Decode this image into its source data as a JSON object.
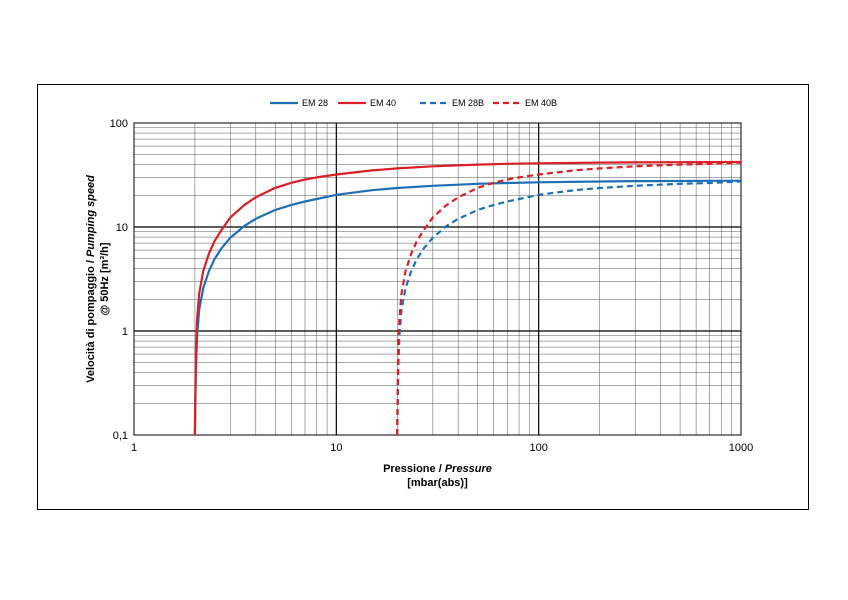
{
  "chart_data": {
    "type": "line",
    "x_scale": "log",
    "y_scale": "log",
    "xlim": [
      1,
      1000
    ],
    "ylim": [
      0.1,
      100
    ],
    "x_ticks": [
      "1",
      "10",
      "100",
      "1000"
    ],
    "y_ticks": [
      "0,1",
      "1",
      "10",
      "100"
    ],
    "xlabel_line1_prefix": "Pressione / ",
    "xlabel_line1_italic": "Pressure",
    "xlabel_line2": "[mbar(abs)]",
    "ylabel_line1_prefix": "Velocità di pompaggio / ",
    "ylabel_line1_italic": "Pumping speed",
    "ylabel_line2": "@ 50Hz [m³/h]",
    "legend_position": "top-center",
    "grid": true,
    "series": [
      {
        "name": "EM 28",
        "color": "#1f6fb4",
        "dash": false,
        "x": [
          2.0,
          2.02,
          2.05,
          2.1,
          2.2,
          2.35,
          2.5,
          2.7,
          3.0,
          3.5,
          4,
          5,
          6,
          7,
          8,
          10,
          15,
          20,
          30,
          50,
          70,
          100,
          200,
          300,
          500,
          700,
          1000
        ],
        "y": [
          0.1,
          0.4,
          0.9,
          1.6,
          2.6,
          3.8,
          4.9,
          6.2,
          7.9,
          10.2,
          12.0,
          14.6,
          16.3,
          17.6,
          18.6,
          20.4,
          22.6,
          23.7,
          24.9,
          26.0,
          26.5,
          26.9,
          27.4,
          27.6,
          27.7,
          27.8,
          27.9
        ]
      },
      {
        "name": "EM 40",
        "color": "#d92027",
        "dash": false,
        "x": [
          2.0,
          2.02,
          2.05,
          2.1,
          2.2,
          2.35,
          2.5,
          2.7,
          3.0,
          3.5,
          4,
          5,
          6,
          7,
          8,
          10,
          15,
          20,
          30,
          50,
          70,
          100,
          200,
          300,
          500,
          700,
          1000
        ],
        "y": [
          0.1,
          0.6,
          1.3,
          2.3,
          3.8,
          5.6,
          7.3,
          9.3,
          12.4,
          16.2,
          19.3,
          23.8,
          26.6,
          28.6,
          30.0,
          32.0,
          35.0,
          36.6,
          38.3,
          39.8,
          40.5,
          41.0,
          41.6,
          41.8,
          42.0,
          42.1,
          42.2
        ]
      },
      {
        "name": "EM 28B",
        "color": "#1f6fb4",
        "dash": true,
        "x": [
          20.0,
          20.2,
          20.5,
          21,
          22,
          23.5,
          25,
          27,
          30,
          35,
          40,
          50,
          60,
          70,
          80,
          100,
          150,
          200,
          300,
          500,
          700,
          1000
        ],
        "y": [
          0.1,
          0.4,
          0.9,
          1.6,
          2.6,
          3.8,
          4.9,
          6.2,
          7.9,
          10.2,
          12.0,
          14.6,
          16.3,
          17.6,
          18.6,
          20.4,
          22.6,
          23.7,
          24.9,
          26.0,
          26.5,
          27.4
        ]
      },
      {
        "name": "EM 40B",
        "color": "#d92027",
        "dash": true,
        "x": [
          20.0,
          20.2,
          20.5,
          21,
          22,
          23.5,
          25,
          27,
          30,
          35,
          40,
          50,
          60,
          70,
          80,
          100,
          150,
          200,
          300,
          500,
          700,
          1000
        ],
        "y": [
          0.1,
          0.6,
          1.3,
          2.3,
          3.8,
          5.6,
          7.3,
          9.3,
          12.4,
          16.2,
          19.3,
          23.8,
          26.6,
          28.6,
          30.0,
          32.0,
          35.0,
          36.6,
          38.3,
          39.8,
          40.5,
          41.6
        ]
      }
    ]
  }
}
